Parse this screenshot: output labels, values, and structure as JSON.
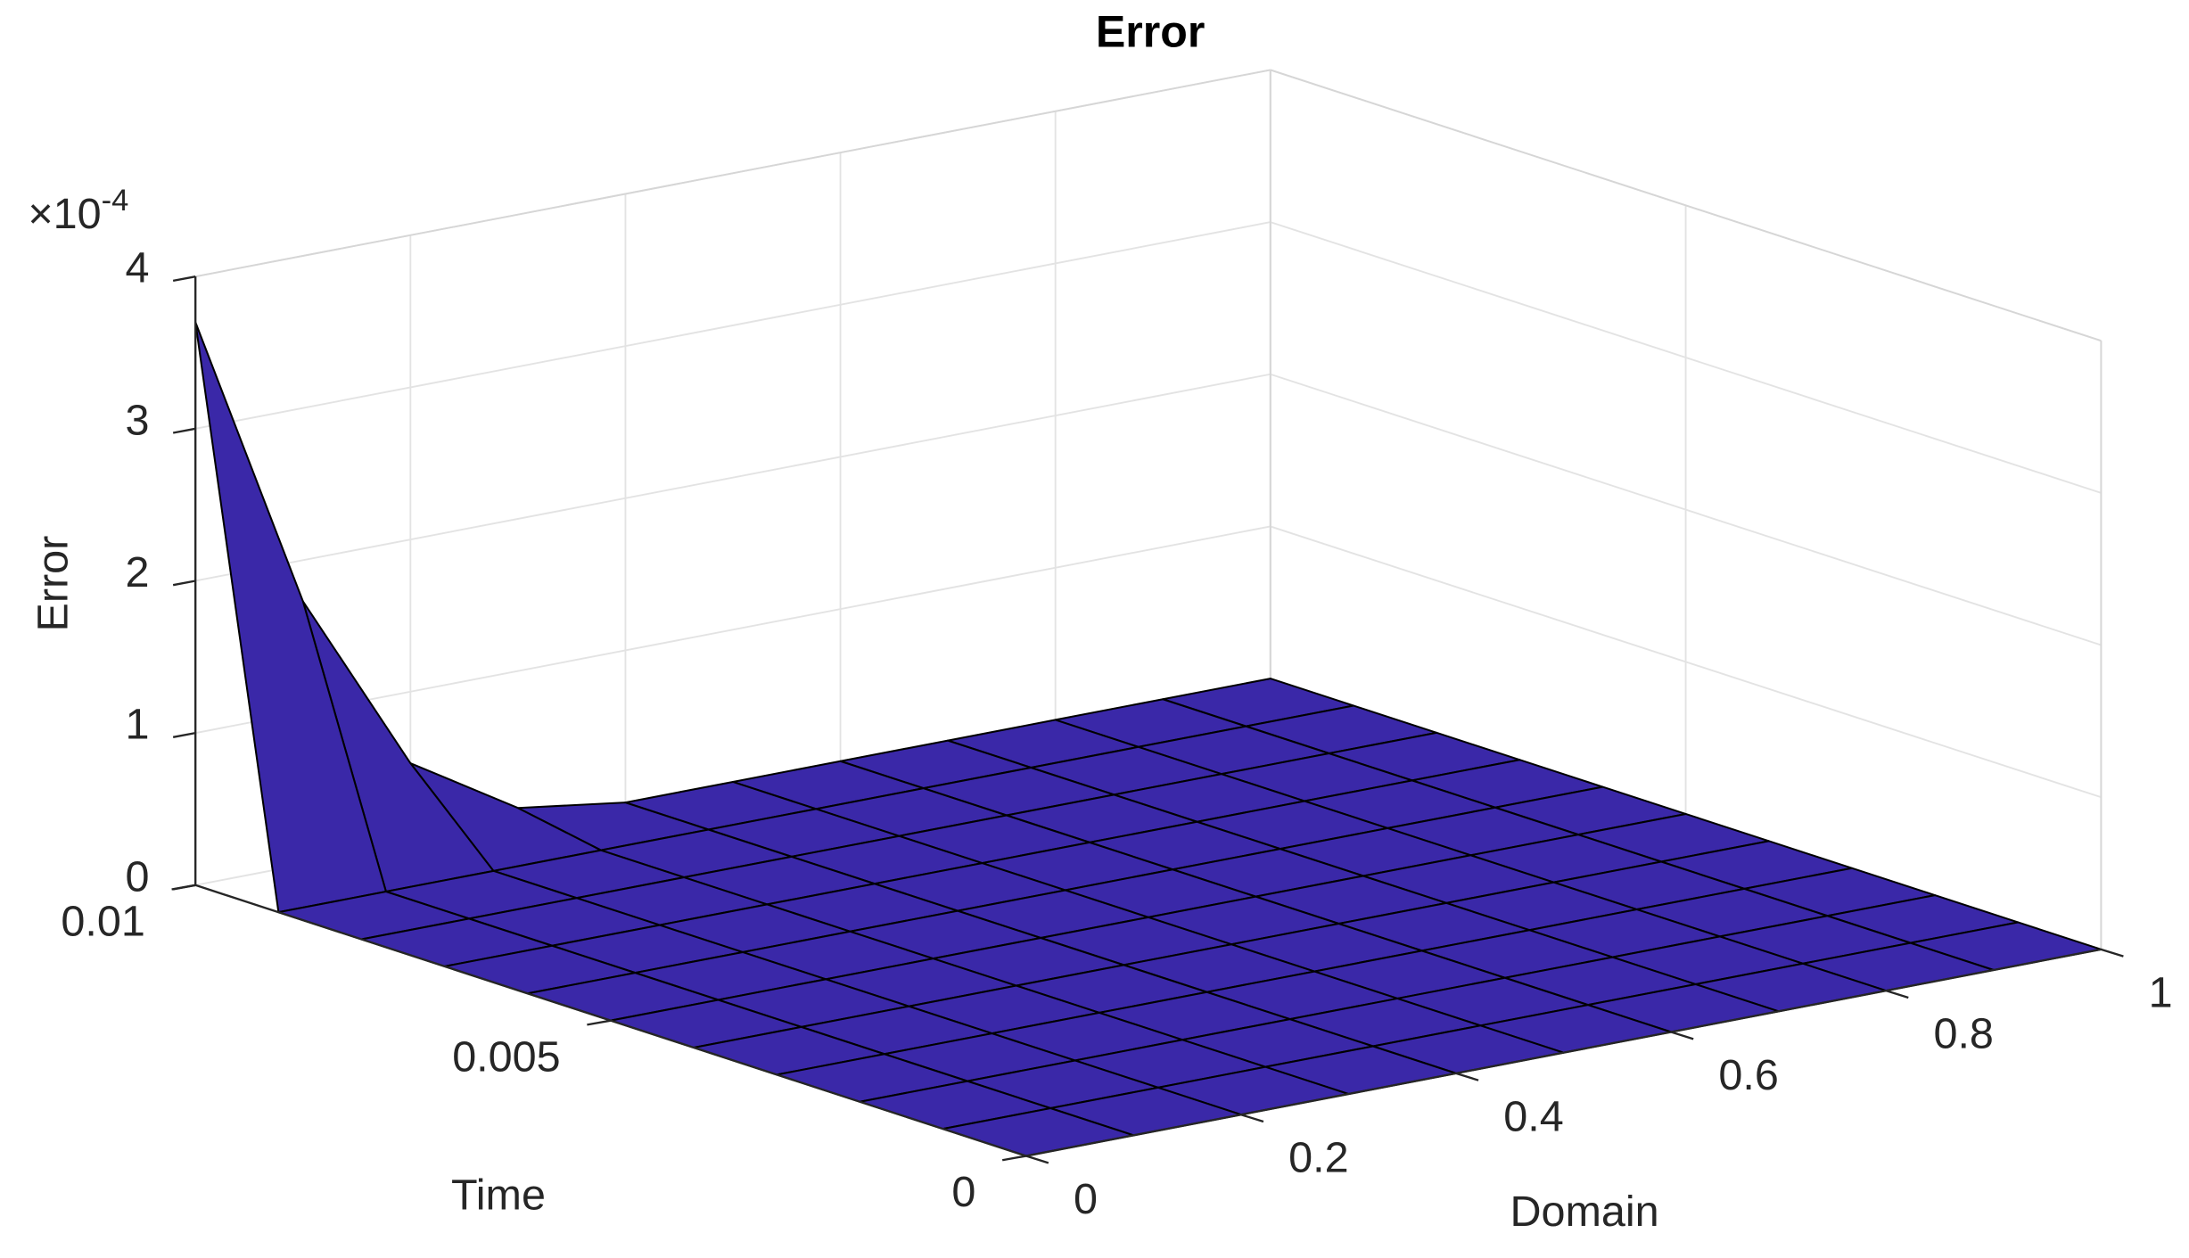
{
  "chart_data": {
    "type": "surface",
    "title": "Error",
    "xlabel": "Domain",
    "ylabel": "Time",
    "zlabel": "Error",
    "z_multiplier": "×10",
    "z_exponent": "-4",
    "color": "#3a28a8",
    "edge_color": "#000000",
    "grid": true,
    "x": [
      0,
      0.1,
      0.2,
      0.3,
      0.4,
      0.5,
      0.6,
      0.7,
      0.8,
      0.9,
      1
    ],
    "y": [
      0,
      0.001,
      0.002,
      0.003,
      0.004,
      0.005,
      0.006,
      0.007,
      0.008,
      0.009,
      0.01
    ],
    "z": [
      [
        0,
        0,
        0,
        0,
        0,
        0,
        0,
        0,
        0,
        0,
        0
      ],
      [
        0,
        0,
        0,
        0,
        0,
        0,
        0,
        0,
        0,
        0,
        0
      ],
      [
        0,
        0,
        0,
        0,
        0,
        0,
        0,
        0,
        0,
        0,
        0
      ],
      [
        0,
        0,
        0,
        0,
        0,
        0,
        0,
        0,
        0,
        0,
        0
      ],
      [
        0,
        0,
        0,
        0,
        0,
        0,
        0,
        0,
        0,
        0,
        0
      ],
      [
        0,
        0,
        0,
        0,
        0,
        0,
        0,
        0,
        0,
        0,
        0
      ],
      [
        0,
        0,
        0,
        0,
        0,
        0,
        0,
        0,
        0,
        0,
        0
      ],
      [
        0,
        0,
        0,
        0,
        0,
        0,
        0,
        0,
        0,
        0,
        0
      ],
      [
        0,
        0,
        0,
        0,
        0,
        0,
        0,
        0,
        0,
        0,
        0
      ],
      [
        0,
        0,
        0,
        0,
        0,
        0,
        0,
        0,
        0,
        0,
        0
      ],
      [
        3.7,
        1.73,
        0.53,
        0.1,
        0,
        0,
        0,
        0,
        0,
        0,
        0
      ]
    ],
    "xlim": [
      0,
      1
    ],
    "ylim": [
      0,
      0.01
    ],
    "zlim": [
      0,
      4
    ],
    "xticks": [
      0,
      0.2,
      0.4,
      0.6,
      0.8,
      1
    ],
    "yticks": [
      0,
      0.005,
      0.01
    ],
    "zticks": [
      0,
      1,
      2,
      3,
      4
    ]
  }
}
